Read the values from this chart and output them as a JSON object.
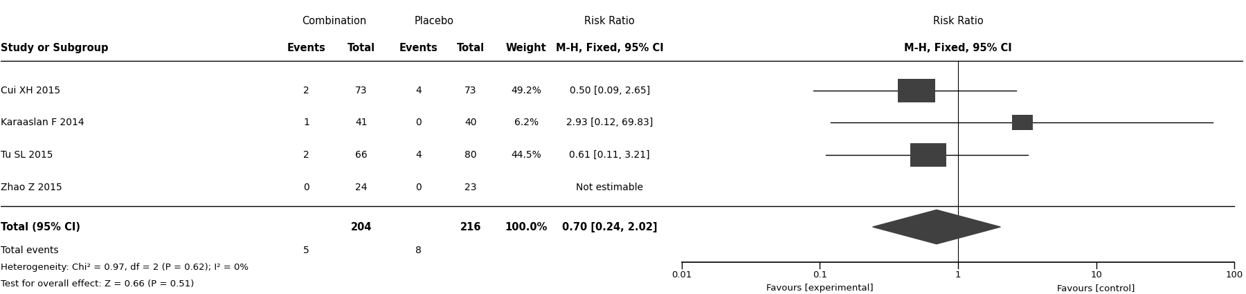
{
  "studies": [
    {
      "name": "Cui XH 2015",
      "comb_events": 2,
      "comb_total": 73,
      "plac_events": 4,
      "plac_total": 73,
      "weight": "49.2%",
      "rr": "0.50 [0.09, 2.65]",
      "rr_val": 0.5,
      "ci_lo": 0.09,
      "ci_hi": 2.65
    },
    {
      "name": "Karaaslan F 2014",
      "comb_events": 1,
      "comb_total": 41,
      "plac_events": 0,
      "plac_total": 40,
      "weight": "6.2%",
      "rr": "2.93 [0.12, 69.83]",
      "rr_val": 2.93,
      "ci_lo": 0.12,
      "ci_hi": 69.83
    },
    {
      "name": "Tu SL 2015",
      "comb_events": 2,
      "comb_total": 66,
      "plac_events": 4,
      "plac_total": 80,
      "weight": "44.5%",
      "rr": "0.61 [0.11, 3.21]",
      "rr_val": 0.61,
      "ci_lo": 0.11,
      "ci_hi": 3.21
    },
    {
      "name": "Zhao Z 2015",
      "comb_events": 0,
      "comb_total": 24,
      "plac_events": 0,
      "plac_total": 23,
      "weight": "",
      "rr": "Not estimable",
      "rr_val": null,
      "ci_lo": null,
      "ci_hi": null
    }
  ],
  "total": {
    "comb_total": 204,
    "plac_total": 216,
    "weight": "100.0%",
    "rr": "0.70 [0.24, 2.02]",
    "rr_val": 0.7,
    "ci_lo": 0.24,
    "ci_hi": 2.02,
    "comb_events": 5,
    "plac_events": 8
  },
  "heterogeneity_line": "Heterogeneity: Chi² = 0.97, df = 2 (P = 0.62); I² = 0%",
  "overall_effect_line": "Test for overall effect: Z = 0.66 (P = 0.51)",
  "combination_header": "Combination",
  "placebo_header": "Placebo",
  "rr_header_left": "Risk Ratio",
  "rr_subheader_left": "M-H, Fixed, 95% CI",
  "rr_header_right": "Risk Ratio",
  "rr_subheader_right": "M-H, Fixed, 95% CI",
  "col_study": "Study or Subgroup",
  "col_events": "Events",
  "col_total": "Total",
  "col_weight": "Weight",
  "axis_ticks": [
    0.01,
    0.1,
    1,
    10,
    100
  ],
  "axis_labels": [
    "0.01",
    "0.1",
    "1",
    "10",
    "100"
  ],
  "favours_left": "Favours [experimental]",
  "favours_right": "Favours [control]",
  "weights_pct": [
    49.2,
    6.2,
    44.5
  ],
  "color_box": "#404040",
  "color_diamond": "#404040",
  "color_line": "#000000",
  "bg_color": "#ffffff"
}
